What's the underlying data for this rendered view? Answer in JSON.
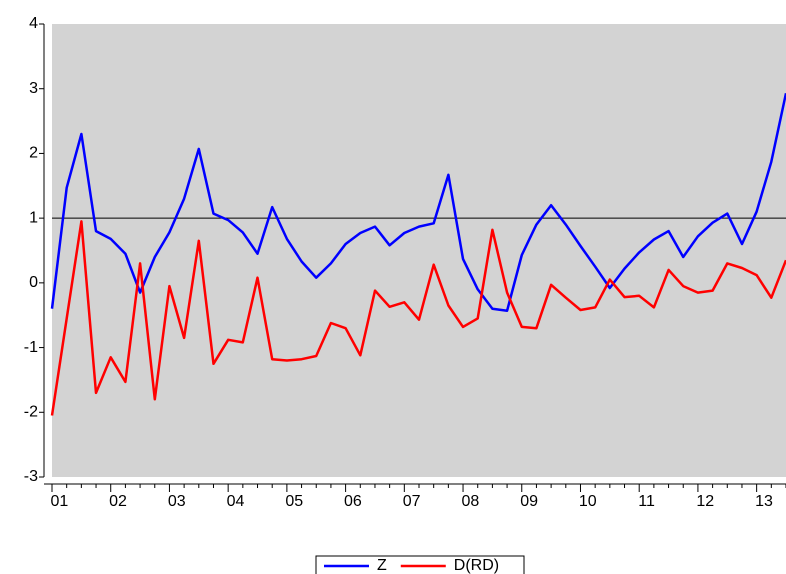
{
  "chart_data": {
    "type": "line",
    "categories": [
      "01",
      null,
      null,
      null,
      "02",
      null,
      null,
      null,
      "03",
      null,
      null,
      null,
      "04",
      null,
      null,
      null,
      "05",
      null,
      null,
      null,
      "06",
      null,
      null,
      null,
      "07",
      null,
      null,
      null,
      "08",
      null,
      null,
      null,
      "09",
      null,
      null,
      null,
      "10",
      null,
      null,
      null,
      "11",
      null,
      null,
      null,
      "12",
      null,
      null,
      null,
      "13",
      null,
      null
    ],
    "series": [
      {
        "name": "Z",
        "color": "#0000ff",
        "values": [
          -0.4,
          1.47,
          2.3,
          0.8,
          0.68,
          0.45,
          -0.15,
          0.4,
          0.78,
          1.3,
          2.07,
          1.07,
          0.97,
          0.78,
          0.45,
          1.17,
          0.68,
          0.33,
          0.08,
          0.3,
          0.6,
          0.77,
          0.87,
          0.58,
          0.77,
          0.87,
          0.92,
          1.67,
          0.37,
          -0.1,
          -0.4,
          -0.43,
          0.43,
          0.9,
          1.2,
          0.9,
          0.57,
          0.25,
          -0.08,
          0.22,
          0.47,
          0.67,
          0.8,
          0.4,
          0.72,
          0.93,
          1.07,
          0.6,
          1.1,
          1.87,
          2.93
        ]
      },
      {
        "name": "D(RD)",
        "color": "#ff0000",
        "values": [
          -2.05,
          -0.55,
          0.95,
          -1.7,
          -1.15,
          -1.53,
          0.3,
          -1.8,
          -0.05,
          -0.85,
          0.65,
          -1.25,
          -0.88,
          -0.92,
          0.08,
          -1.18,
          -1.2,
          -1.18,
          -1.13,
          -0.62,
          -0.7,
          -1.12,
          -0.12,
          -0.37,
          -0.3,
          -0.57,
          0.28,
          -0.35,
          -0.68,
          -0.55,
          0.82,
          -0.15,
          -0.68,
          -0.7,
          -0.03,
          -0.23,
          -0.42,
          -0.38,
          0.05,
          -0.22,
          -0.2,
          -0.38,
          0.2,
          -0.05,
          -0.15,
          -0.12,
          0.3,
          0.23,
          0.12,
          -0.23,
          0.35
        ]
      }
    ],
    "ylim": [
      -3,
      4
    ],
    "yticks": [
      -3,
      -2,
      -1,
      0,
      1,
      2,
      3,
      4
    ],
    "hline": 1,
    "plot_background": "#d3d3d3"
  }
}
